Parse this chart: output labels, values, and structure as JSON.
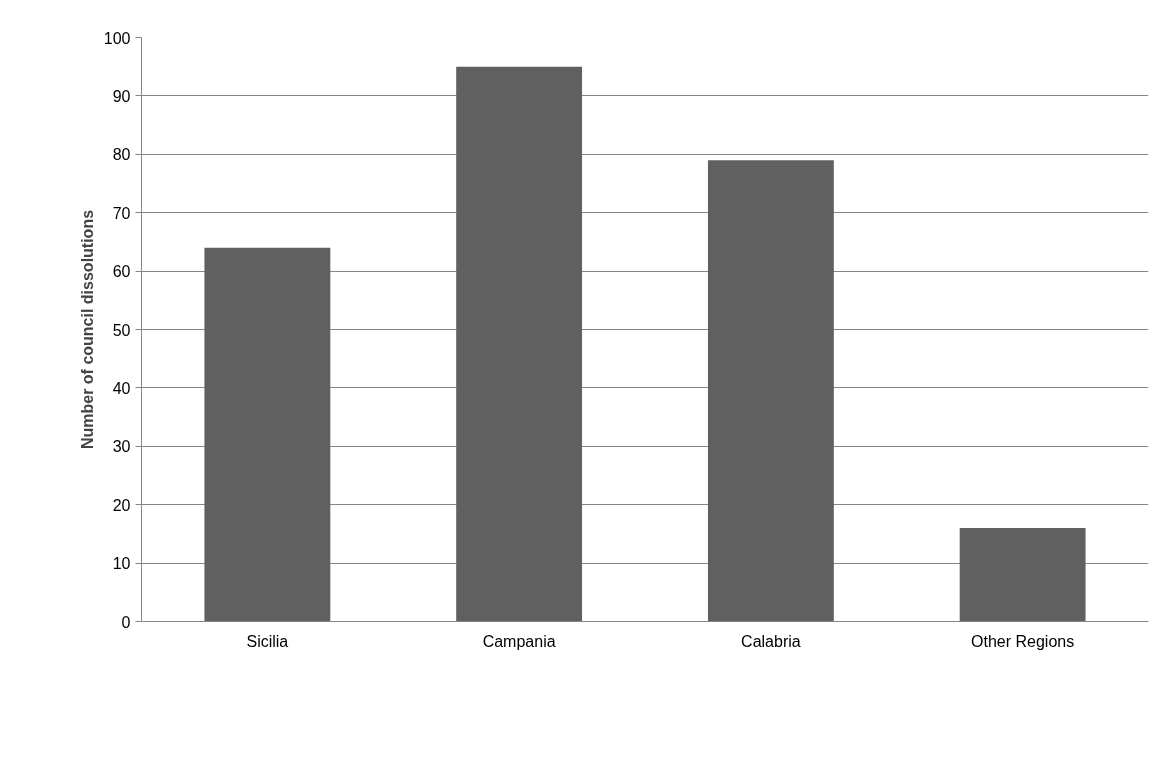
{
  "chart_data": {
    "type": "bar",
    "ylabel": "Number of council dissolutions",
    "categories": [
      "Sicilia",
      "Campania",
      "Calabria",
      "Other Regions"
    ],
    "values": [
      64,
      95,
      79,
      16
    ],
    "color": "#606060",
    "ylim": [
      0,
      100
    ],
    "yticks": [
      0,
      10,
      20,
      30,
      40,
      50,
      60,
      70,
      80,
      90,
      100
    ],
    "grid": "y"
  }
}
